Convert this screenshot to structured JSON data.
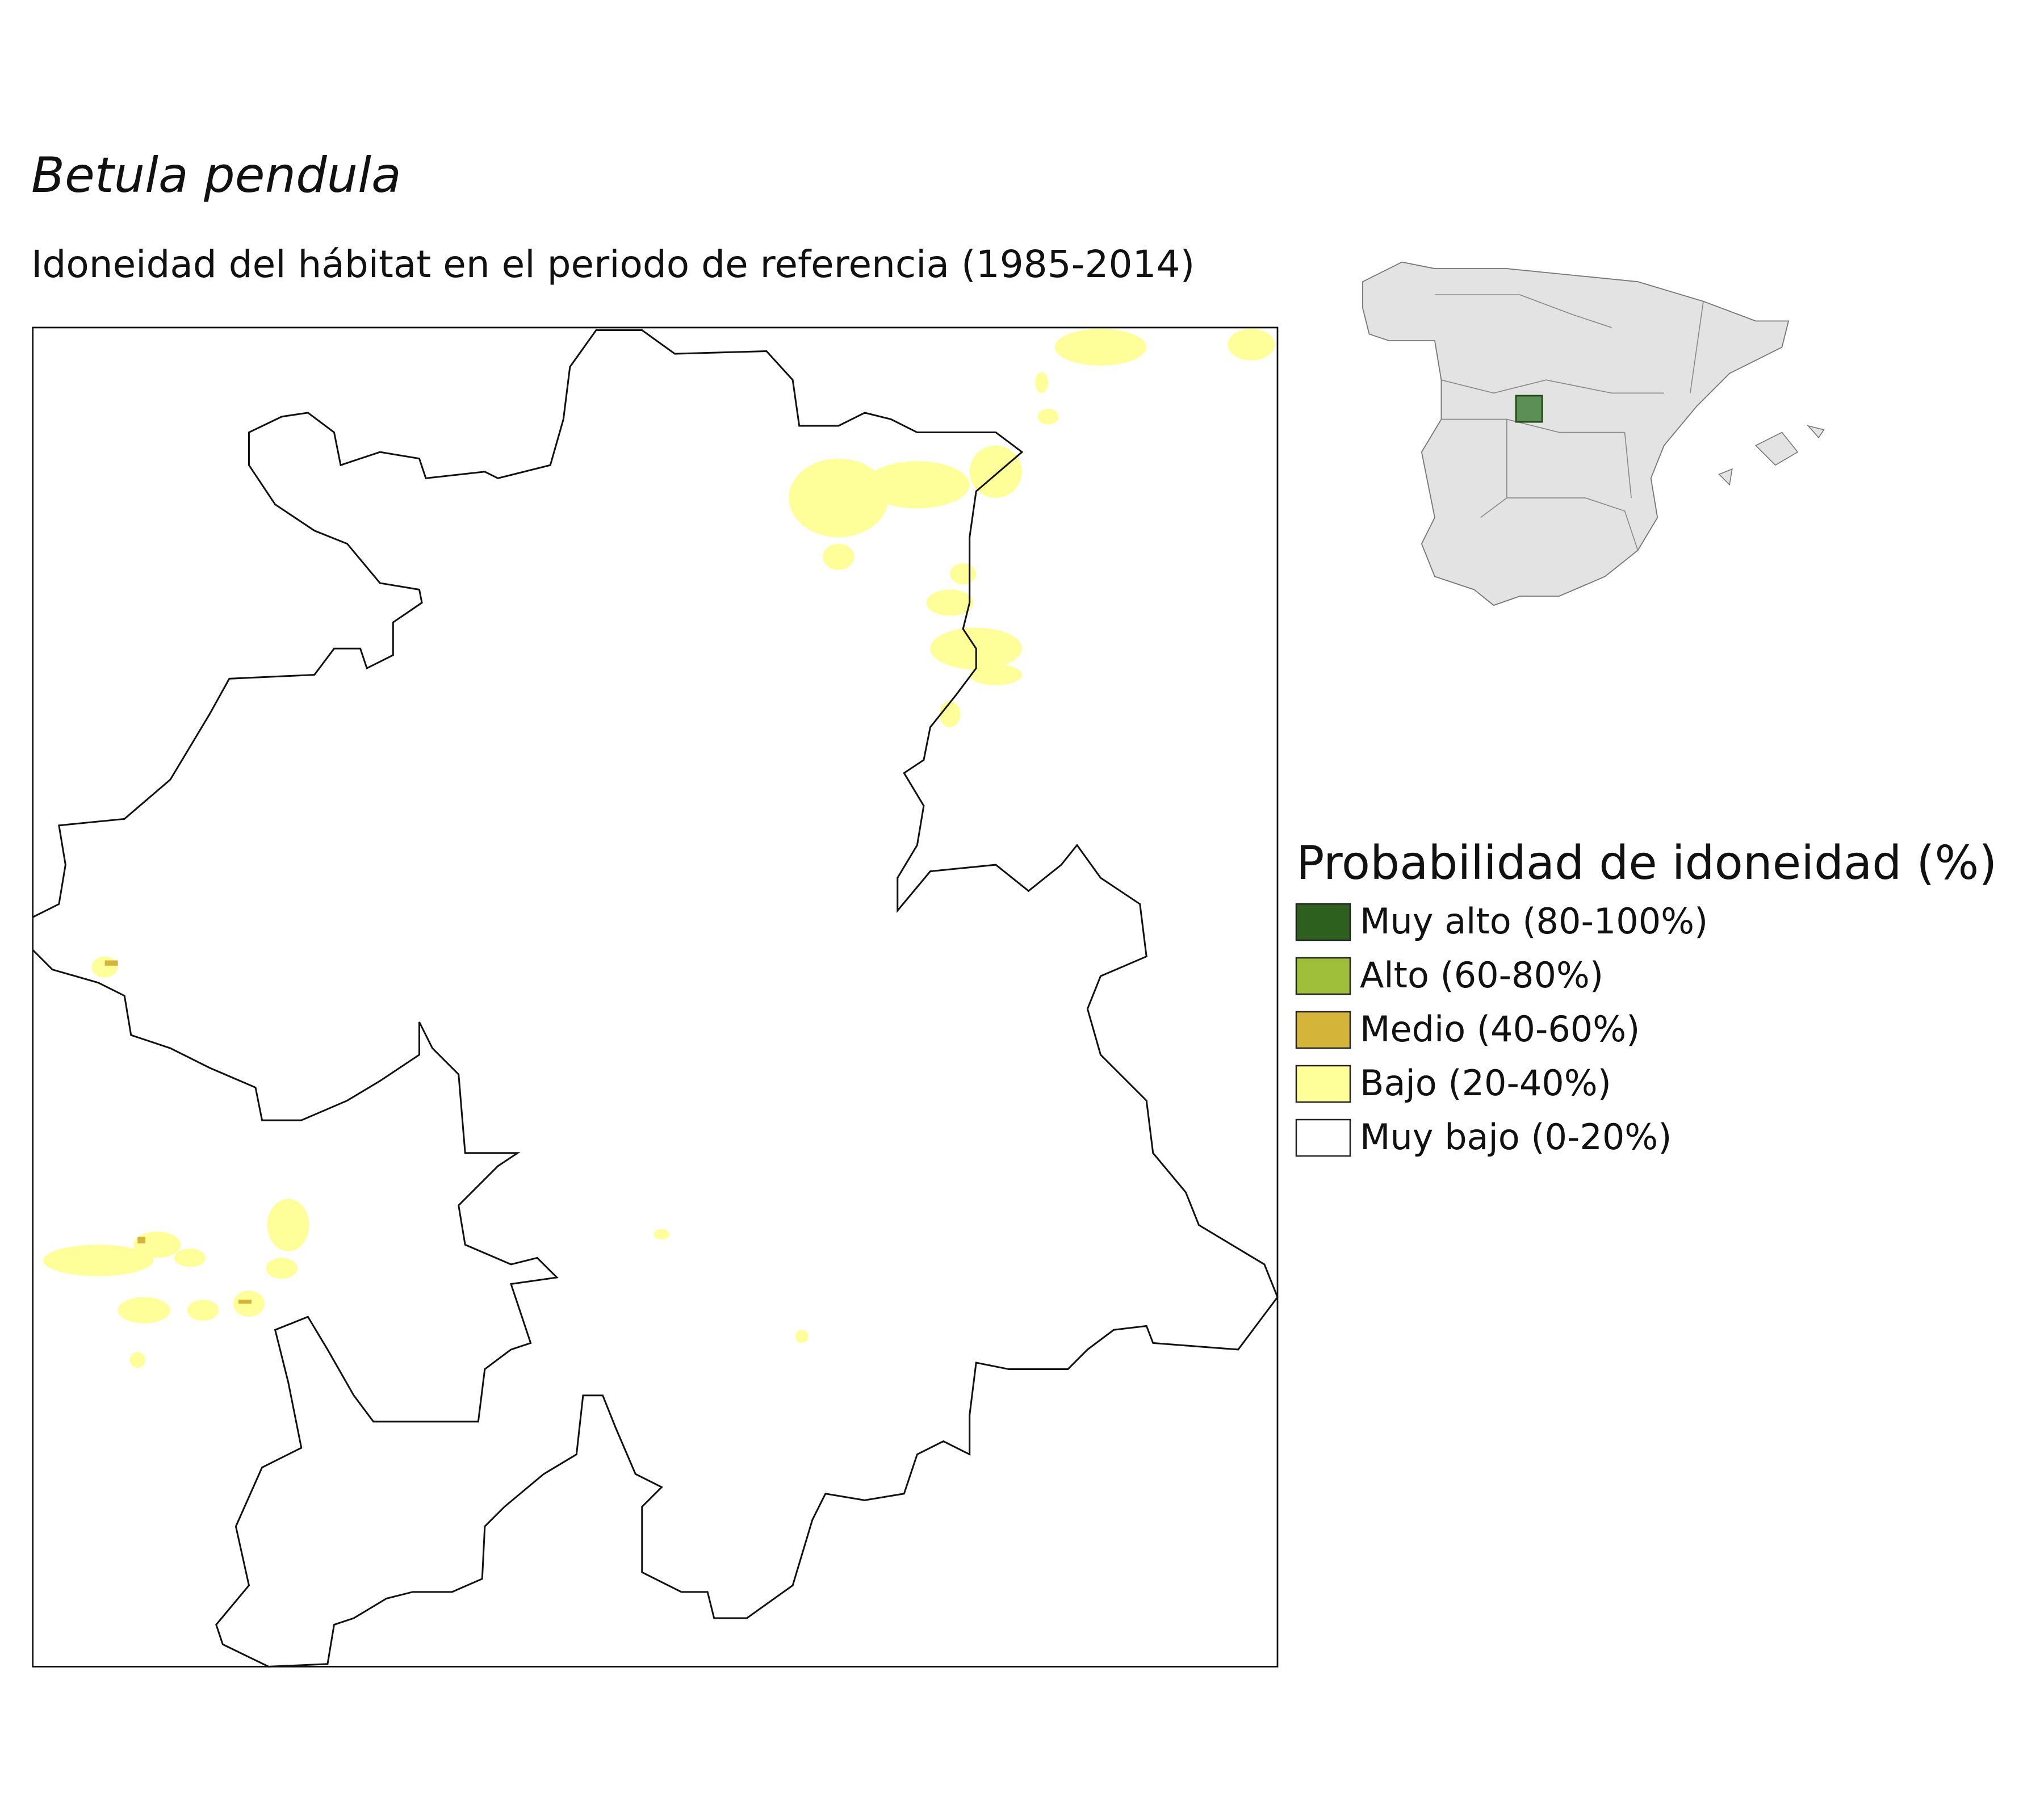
{
  "title": "Betula pendula",
  "subtitle": "Idoneidad del hábitat en el periodo de referencia (1985-2014)",
  "legend": {
    "title": "Probabilidad de idoneidad (%)",
    "items": [
      {
        "label": "Muy alto (80-100%)",
        "color": "#2d5f1e"
      },
      {
        "label": "Alto (60-80%)",
        "color": "#9fbf3b"
      },
      {
        "label": "Medio (40-60%)",
        "color": "#d4b53a"
      },
      {
        "label": "Bajo (20-40%)",
        "color": "#ffff99"
      },
      {
        "label": "Muy bajo (0-20%)",
        "color": "#ffffff"
      }
    ]
  }
}
